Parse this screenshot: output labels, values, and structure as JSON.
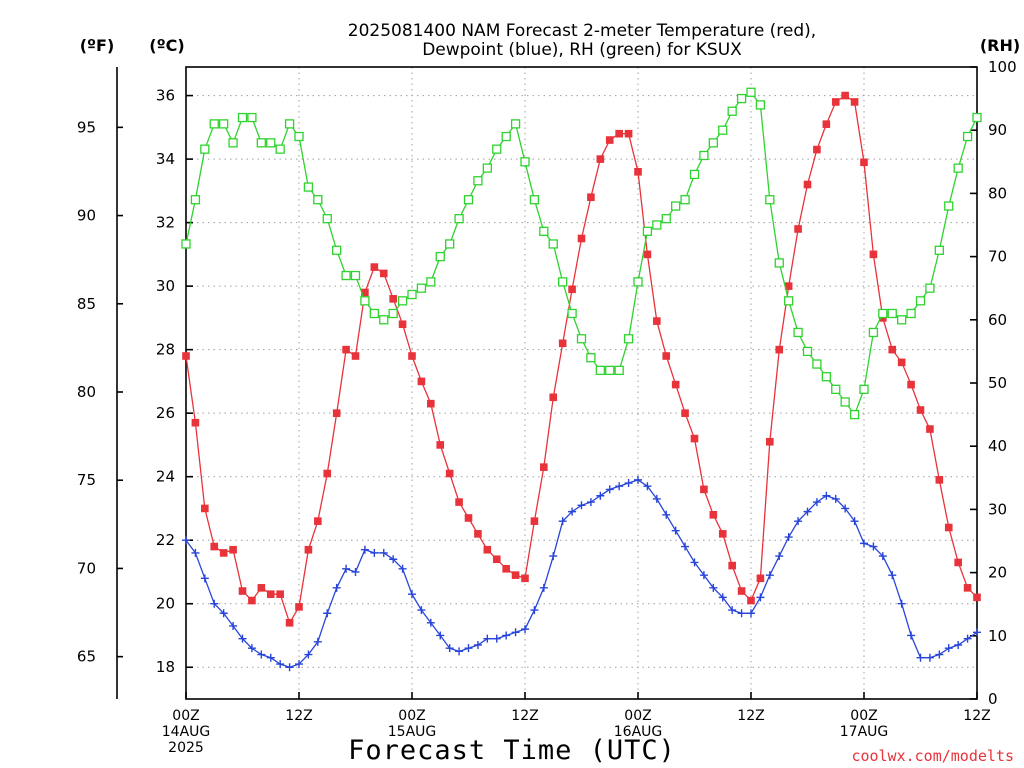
{
  "chart_data": {
    "type": "line",
    "title_lines": [
      "2025081400 NAM Forecast 2-meter Temperature (red),",
      "Dewpoint (blue), RH (green) for KSUX"
    ],
    "unit_labels": {
      "fahrenheit": "(ºF)",
      "celsius": "(ºC)",
      "rh": "(RH)"
    },
    "xlabel": "Forecast Time (UTC)",
    "credit": "coolwx.com/modelts",
    "x_ticks": [
      {
        "hour": 0,
        "lines": [
          "00Z",
          "14AUG",
          "2025"
        ]
      },
      {
        "hour": 12,
        "lines": [
          "12Z"
        ]
      },
      {
        "hour": 24,
        "lines": [
          "00Z",
          "15AUG"
        ]
      },
      {
        "hour": 36,
        "lines": [
          "12Z"
        ]
      },
      {
        "hour": 48,
        "lines": [
          "00Z",
          "16AUG"
        ]
      },
      {
        "hour": 60,
        "lines": [
          "12Z"
        ]
      },
      {
        "hour": 72,
        "lines": [
          "00Z",
          "17AUG"
        ]
      },
      {
        "hour": 84,
        "lines": [
          "12Z"
        ]
      }
    ],
    "xlim_hours": [
      0,
      84
    ],
    "celsius_ticks": [
      18,
      20,
      22,
      24,
      26,
      28,
      30,
      32,
      34,
      36
    ],
    "celsius_lim": [
      17.0,
      36.9
    ],
    "fahrenheit_ticks": [
      65,
      70,
      75,
      80,
      85,
      90,
      95
    ],
    "rh_ticks": [
      0,
      10,
      20,
      30,
      40,
      50,
      60,
      70,
      80,
      90,
      100
    ],
    "rh_lim": [
      0,
      100
    ],
    "grid": true,
    "x_hours": [
      0,
      1,
      2,
      3,
      4,
      5,
      6,
      7,
      8,
      9,
      10,
      11,
      12,
      13,
      14,
      15,
      16,
      17,
      18,
      19,
      20,
      21,
      22,
      23,
      24,
      25,
      26,
      27,
      28,
      29,
      30,
      31,
      32,
      33,
      34,
      35,
      36,
      37,
      38,
      39,
      40,
      41,
      42,
      43,
      44,
      45,
      46,
      47,
      48,
      49,
      50,
      51,
      52,
      53,
      54,
      55,
      56,
      57,
      58,
      59,
      60,
      61,
      62,
      63,
      64,
      65,
      66,
      67,
      68,
      69,
      70,
      71,
      72,
      73,
      74,
      75,
      76,
      77,
      78,
      79,
      80,
      81,
      82,
      83,
      84
    ],
    "series": [
      {
        "key": "temperature",
        "color": "#e8333a",
        "marker": "filled-square",
        "axis": "celsius",
        "values": [
          27.8,
          25.7,
          23.0,
          21.8,
          21.6,
          21.7,
          20.4,
          20.1,
          20.5,
          20.3,
          20.3,
          19.4,
          19.9,
          21.7,
          22.6,
          24.1,
          26.0,
          28.0,
          27.8,
          29.8,
          30.6,
          30.4,
          29.6,
          28.8,
          27.8,
          27.0,
          26.3,
          25.0,
          24.1,
          23.2,
          22.7,
          22.2,
          21.7,
          21.4,
          21.1,
          20.9,
          20.8,
          22.6,
          24.3,
          26.5,
          28.2,
          29.9,
          31.5,
          32.8,
          34.0,
          34.6,
          34.8,
          34.8,
          33.6,
          31.0,
          28.9,
          27.8,
          26.9,
          26.0,
          25.2,
          23.6,
          22.8,
          22.2,
          21.2,
          20.4,
          20.1,
          20.8,
          25.1,
          28.0,
          30.0,
          31.8,
          33.2,
          34.3,
          35.1,
          35.8,
          36.0,
          35.8,
          33.9,
          31.0,
          29.0,
          28.0,
          27.6,
          26.9,
          26.1,
          25.5,
          23.9,
          22.4,
          21.3,
          20.5,
          20.2
        ],
        "readings_at": "hourly, then interpolated"
      },
      {
        "key": "dewpoint",
        "color": "#2845d9",
        "marker": "plus",
        "axis": "celsius",
        "values": [
          22.0,
          21.6,
          20.8,
          20.0,
          19.7,
          19.3,
          18.9,
          18.6,
          18.4,
          18.3,
          18.1,
          18.0,
          18.1,
          18.4,
          18.8,
          19.7,
          20.5,
          21.1,
          21.0,
          21.7,
          21.6,
          21.6,
          21.4,
          21.1,
          20.3,
          19.8,
          19.4,
          19.0,
          18.6,
          18.5,
          18.6,
          18.7,
          18.9,
          18.9,
          19.0,
          19.1,
          19.2,
          19.8,
          20.5,
          21.5,
          22.6,
          22.9,
          23.1,
          23.2,
          23.4,
          23.6,
          23.7,
          23.8,
          23.9,
          23.7,
          23.3,
          22.8,
          22.3,
          21.8,
          21.3,
          20.9,
          20.5,
          20.2,
          19.8,
          19.7,
          19.7,
          20.2,
          20.9,
          21.5,
          22.1,
          22.6,
          22.9,
          23.2,
          23.4,
          23.3,
          23.0,
          22.6,
          21.9,
          21.8,
          21.5,
          20.9,
          20.0,
          19.0,
          18.3,
          18.3,
          18.4,
          18.6,
          18.7,
          18.9,
          19.1
        ]
      },
      {
        "key": "rh",
        "color": "#2fd32f",
        "marker": "open-square",
        "axis": "rh",
        "values": [
          72,
          79,
          87,
          91,
          91,
          88,
          92,
          92,
          88,
          88,
          87,
          91,
          89,
          81,
          79,
          76,
          71,
          67,
          67,
          63,
          61,
          60,
          61,
          63,
          64,
          65,
          66,
          70,
          72,
          76,
          79,
          82,
          84,
          87,
          89,
          91,
          85,
          79,
          74,
          72,
          66,
          61,
          57,
          54,
          52,
          52,
          52,
          57,
          66,
          74,
          75,
          76,
          78,
          79,
          83,
          86,
          88,
          90,
          93,
          95,
          96,
          94,
          79,
          69,
          63,
          58,
          55,
          53,
          51,
          49,
          47,
          45,
          49,
          58,
          61,
          61,
          60,
          61,
          63,
          65,
          71,
          78,
          84,
          89,
          92
        ]
      }
    ]
  }
}
